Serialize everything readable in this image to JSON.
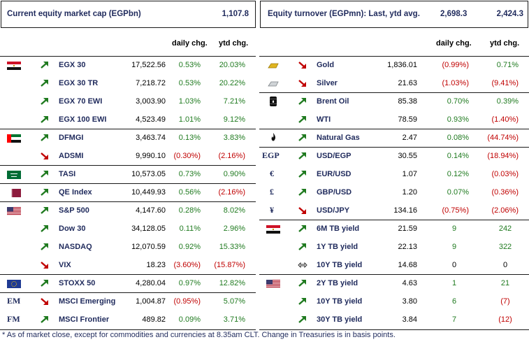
{
  "left_header": {
    "title": "Current equity market cap (EGPbn)",
    "value": "1,107.8"
  },
  "right_header": {
    "title": "Equity turnover (EGPmn): Last, ytd avg.",
    "last": "2,698.3",
    "ytd_avg": "2,424.3"
  },
  "columns": {
    "daily": "daily chg.",
    "ytd": "ytd chg."
  },
  "left_rows": [
    {
      "icon": "egypt-flag",
      "dir": "up",
      "name": "EGX 30",
      "value": "17,522.56",
      "daily": "0.53%",
      "daily_tone": "pos",
      "ytd": "20.03%",
      "ytd_tone": "pos"
    },
    {
      "icon": "",
      "dir": "up",
      "name": "EGX 30 TR",
      "value": "7,218.72",
      "daily": "0.53%",
      "daily_tone": "pos",
      "ytd": "20.22%",
      "ytd_tone": "pos"
    },
    {
      "icon": "",
      "dir": "up",
      "name": "EGX 70 EWI",
      "value": "3,003.90",
      "daily": "1.03%",
      "daily_tone": "pos",
      "ytd": "7.21%",
      "ytd_tone": "pos"
    },
    {
      "icon": "",
      "dir": "up",
      "name": "EGX 100 EWI",
      "value": "4,523.49",
      "daily": "1.01%",
      "daily_tone": "pos",
      "ytd": "9.12%",
      "ytd_tone": "pos"
    },
    {
      "icon": "uae-flag",
      "dir": "up",
      "name": "DFMGI",
      "value": "3,463.74",
      "daily": "0.13%",
      "daily_tone": "pos",
      "ytd": "3.83%",
      "ytd_tone": "pos"
    },
    {
      "icon": "",
      "dir": "down",
      "name": "ADSMI",
      "value": "9,990.10",
      "daily": "(0.30%)",
      "daily_tone": "neg",
      "ytd": "(2.16%)",
      "ytd_tone": "neg"
    },
    {
      "icon": "saudi-flag",
      "dir": "up",
      "name": "TASI",
      "value": "10,573.05",
      "daily": "0.73%",
      "daily_tone": "pos",
      "ytd": "0.90%",
      "ytd_tone": "pos"
    },
    {
      "icon": "qatar-flag",
      "dir": "up",
      "name": "QE Index",
      "value": "10,449.93",
      "daily": "0.56%",
      "daily_tone": "pos",
      "ytd": "(2.16%)",
      "ytd_tone": "neg"
    },
    {
      "icon": "us-flag",
      "dir": "up",
      "name": "S&P 500",
      "value": "4,147.60",
      "daily": "0.28%",
      "daily_tone": "pos",
      "ytd": "8.02%",
      "ytd_tone": "pos"
    },
    {
      "icon": "",
      "dir": "up",
      "name": "Dow 30",
      "value": "34,128.05",
      "daily": "0.11%",
      "daily_tone": "pos",
      "ytd": "2.96%",
      "ytd_tone": "pos"
    },
    {
      "icon": "",
      "dir": "up",
      "name": "NASDAQ",
      "value": "12,070.59",
      "daily": "0.92%",
      "daily_tone": "pos",
      "ytd": "15.33%",
      "ytd_tone": "pos"
    },
    {
      "icon": "",
      "dir": "down",
      "name": "VIX",
      "value": "18.23",
      "daily": "(3.60%)",
      "daily_tone": "neg",
      "ytd": "(15.87%)",
      "ytd_tone": "neg"
    },
    {
      "icon": "eu-flag",
      "dir": "up",
      "name": "STOXX 50",
      "value": "4,280.04",
      "daily": "0.97%",
      "daily_tone": "pos",
      "ytd": "12.82%",
      "ytd_tone": "pos"
    },
    {
      "icon": "EM",
      "dir": "down",
      "name": "MSCI Emerging",
      "value": "1,004.87",
      "daily": "(0.95%)",
      "daily_tone": "neg",
      "ytd": "5.07%",
      "ytd_tone": "pos"
    },
    {
      "icon": "FM",
      "dir": "up",
      "name": "MSCI Frontier",
      "value": "489.82",
      "daily": "0.09%",
      "daily_tone": "pos",
      "ytd": "3.71%",
      "ytd_tone": "pos"
    }
  ],
  "right_rows": [
    {
      "icon": "gold-bar",
      "dir": "down",
      "name": "Gold",
      "value": "1,836.01",
      "daily": "(0.99%)",
      "daily_tone": "neg",
      "ytd": "0.71%",
      "ytd_tone": "pos"
    },
    {
      "icon": "silver-bar",
      "dir": "down",
      "name": "Silver",
      "value": "21.63",
      "daily": "(1.03%)",
      "daily_tone": "neg",
      "ytd": "(9.41%)",
      "ytd_tone": "neg"
    },
    {
      "icon": "oil-barrel",
      "dir": "up",
      "name": "Brent Oil",
      "value": "85.38",
      "daily": "0.70%",
      "daily_tone": "pos",
      "ytd": "0.39%",
      "ytd_tone": "pos"
    },
    {
      "icon": "",
      "dir": "up",
      "name": "WTI",
      "value": "78.59",
      "daily": "0.93%",
      "daily_tone": "pos",
      "ytd": "(1.40%)",
      "ytd_tone": "neg"
    },
    {
      "icon": "flame",
      "dir": "up",
      "name": "Natural Gas",
      "value": "2.47",
      "daily": "0.08%",
      "daily_tone": "pos",
      "ytd": "(44.74%)",
      "ytd_tone": "neg"
    },
    {
      "icon": "EGP",
      "dir": "up",
      "name": "USD/EGP",
      "value": "30.55",
      "daily": "0.14%",
      "daily_tone": "pos",
      "ytd": "(18.94%)",
      "ytd_tone": "neg"
    },
    {
      "icon": "€",
      "dir": "up",
      "name": "EUR/USD",
      "value": "1.07",
      "daily": "0.12%",
      "daily_tone": "pos",
      "ytd": "(0.03%)",
      "ytd_tone": "neg"
    },
    {
      "icon": "£",
      "dir": "up",
      "name": "GBP/USD",
      "value": "1.20",
      "daily": "0.07%",
      "daily_tone": "pos",
      "ytd": "(0.36%)",
      "ytd_tone": "neg"
    },
    {
      "icon": "¥",
      "dir": "down",
      "name": "USD/JPY",
      "value": "134.16",
      "daily": "(0.75%)",
      "daily_tone": "neg",
      "ytd": "(2.06%)",
      "ytd_tone": "neg"
    },
    {
      "icon": "egypt-flag",
      "dir": "up",
      "name": "6M TB yield",
      "value": "21.59",
      "daily": "9",
      "daily_tone": "pos",
      "ytd": "242",
      "ytd_tone": "pos"
    },
    {
      "icon": "",
      "dir": "up",
      "name": "1Y TB yield",
      "value": "22.13",
      "daily": "9",
      "daily_tone": "pos",
      "ytd": "322",
      "ytd_tone": "pos"
    },
    {
      "icon": "",
      "dir": "flat",
      "name": "10Y TB yield",
      "value": "14.68",
      "daily": "0",
      "daily_tone": "neu",
      "ytd": "0",
      "ytd_tone": "neu"
    },
    {
      "icon": "us-flag",
      "dir": "up",
      "name": "2Y TB yield",
      "value": "4.63",
      "daily": "1",
      "daily_tone": "pos",
      "ytd": "21",
      "ytd_tone": "pos"
    },
    {
      "icon": "",
      "dir": "up",
      "name": "10Y TB yield",
      "value": "3.80",
      "daily": "6",
      "daily_tone": "pos",
      "ytd": "(7)",
      "ytd_tone": "neg"
    },
    {
      "icon": "",
      "dir": "up",
      "name": "30Y TB yield",
      "value": "3.84",
      "daily": "7",
      "daily_tone": "pos",
      "ytd": "(12)",
      "ytd_tone": "neg"
    }
  ],
  "footnote": "* As of market close, except for commodities and currencies at 8.35am CLT. Change in Treasuries is in basis points.",
  "colors": {
    "positive": "#1f7a1f",
    "negative": "#c00000",
    "navy": "#1f2a5c"
  }
}
